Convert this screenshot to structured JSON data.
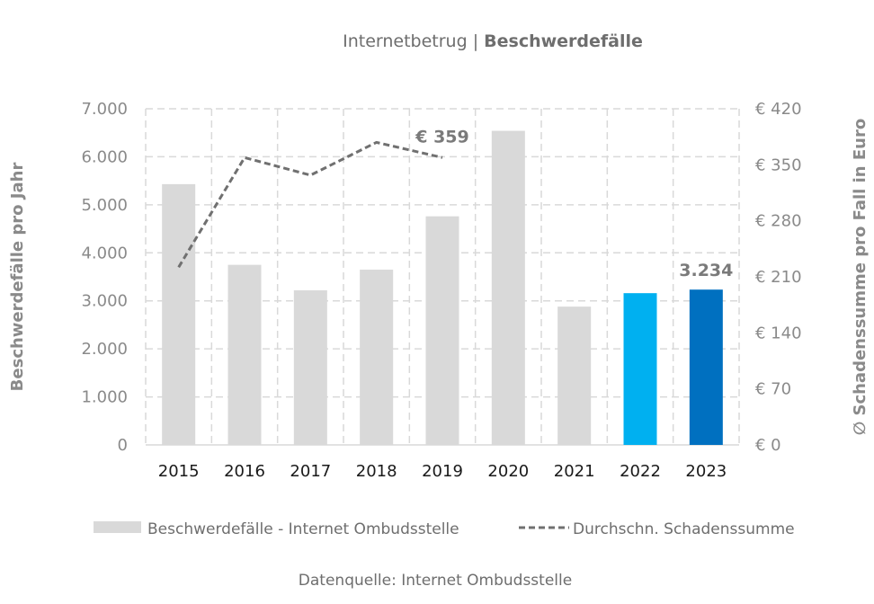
{
  "chart_data": {
    "type": "bar",
    "title_prefix": "Internetbetrug | ",
    "title_main": "Beschwerdefälle",
    "categories": [
      "2015",
      "2016",
      "2017",
      "2018",
      "2019",
      "2020",
      "2021",
      "2022",
      "2023"
    ],
    "series": [
      {
        "name": "Beschwerdefälle - Internet Ombudsstelle",
        "type": "bar",
        "axis": "left",
        "values": [
          5430,
          3750,
          3220,
          3650,
          4760,
          6540,
          2880,
          3160,
          3234
        ],
        "colors": [
          "#d9d9d9",
          "#d9d9d9",
          "#d9d9d9",
          "#d9d9d9",
          "#d9d9d9",
          "#d9d9d9",
          "#d9d9d9",
          "#00b0f0",
          "#0070c0"
        ]
      },
      {
        "name": "Durchschn. Schadenssumme",
        "type": "line",
        "style": "dashed",
        "axis": "right",
        "color": "#707070",
        "values": [
          222,
          359,
          337,
          378,
          359,
          null,
          null,
          null,
          null
        ]
      }
    ],
    "y_left": {
      "label": "Beschwerdefälle pro Jahr",
      "range": [
        0,
        7000
      ],
      "ticks": [
        "0",
        "1.000",
        "2.000",
        "3.000",
        "4.000",
        "5.000",
        "6.000",
        "7.000"
      ]
    },
    "y_right": {
      "label": "∅ Schadenssumme pro Fall in Euro",
      "range": [
        0,
        420
      ],
      "ticks": [
        "€ 0",
        "€ 70",
        "€ 140",
        "€ 210",
        "€ 280",
        "€ 350",
        "€ 420"
      ]
    },
    "annotations": [
      {
        "text": "€ 359",
        "category": "2019",
        "series": "Durchschn. Schadenssumme"
      },
      {
        "text": "3.234",
        "category": "2023",
        "series": "Beschwerdefälle - Internet Ombudsstelle"
      }
    ],
    "grid": true,
    "legend_position": "bottom",
    "source": "Datenquelle: Internet Ombudsstelle"
  },
  "colors": {
    "bar_default": "#d9d9d9",
    "bar_2022": "#00b0f0",
    "bar_2023": "#0070c0",
    "line": "#707070",
    "grid": "#d9d9d9"
  }
}
